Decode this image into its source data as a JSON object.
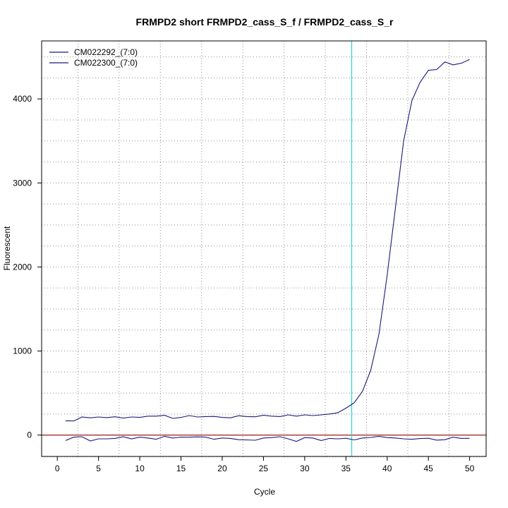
{
  "chart_data": {
    "type": "line",
    "title": "FRMPD2 short FRMPD2_cass_S_f / FRMPD2_cass_S_r",
    "xlabel": "Cycle",
    "ylabel": "Fluorescent",
    "xlim": [
      -1.9,
      52
    ],
    "ylim": [
      -255,
      4690
    ],
    "x_ticks": [
      0,
      5,
      10,
      15,
      20,
      25,
      30,
      35,
      40,
      45,
      50
    ],
    "y_ticks": [
      0,
      1000,
      2000,
      3000,
      4000
    ],
    "grid": true,
    "threshold_x": 35.7,
    "baseline_y": 0,
    "legend_position": "top-left",
    "colors": {
      "series_line": "#1a1a7a",
      "threshold": "#29d3d3",
      "baseline": "#a01c1c",
      "grid": "#909090",
      "axis": "#000000"
    },
    "series": [
      {
        "name": "CM022292_(7:0)",
        "x": [
          1,
          2,
          3,
          4,
          5,
          6,
          7,
          8,
          9,
          10,
          11,
          12,
          13,
          14,
          15,
          16,
          17,
          18,
          19,
          20,
          21,
          22,
          23,
          24,
          25,
          26,
          27,
          28,
          29,
          30,
          31,
          32,
          33,
          34,
          35,
          36,
          37,
          38,
          39,
          40,
          41,
          42,
          43,
          44,
          45,
          46,
          47,
          48,
          49,
          50
        ],
        "y": [
          170,
          168,
          215,
          205,
          215,
          208,
          218,
          202,
          215,
          210,
          225,
          225,
          235,
          198,
          210,
          232,
          215,
          220,
          222,
          210,
          205,
          230,
          220,
          218,
          235,
          225,
          220,
          240,
          225,
          240,
          232,
          240,
          250,
          265,
          320,
          385,
          520,
          770,
          1200,
          1900,
          2700,
          3500,
          3980,
          4200,
          4340,
          4350,
          4440,
          4405,
          4425,
          4470
        ]
      },
      {
        "name": "CM022300_(7:0)",
        "x": [
          1,
          2,
          3,
          4,
          5,
          6,
          7,
          8,
          9,
          10,
          11,
          12,
          13,
          14,
          15,
          16,
          17,
          18,
          19,
          20,
          21,
          22,
          23,
          24,
          25,
          26,
          27,
          28,
          29,
          30,
          31,
          32,
          33,
          34,
          35,
          36,
          37,
          38,
          39,
          40,
          41,
          42,
          43,
          44,
          45,
          46,
          47,
          48,
          49,
          50
        ],
        "y": [
          -65,
          -25,
          -20,
          -70,
          -45,
          -45,
          -40,
          -20,
          -45,
          -25,
          -35,
          -50,
          -15,
          -35,
          -25,
          -25,
          -22,
          -25,
          -50,
          -35,
          -40,
          -55,
          -58,
          -62,
          -35,
          -30,
          -20,
          -45,
          -75,
          -30,
          -35,
          -65,
          -40,
          -45,
          -38,
          -58,
          -35,
          -28,
          -15,
          -30,
          -35,
          -45,
          -50,
          -42,
          -38,
          -60,
          -55,
          -25,
          -40,
          -38
        ]
      }
    ]
  }
}
